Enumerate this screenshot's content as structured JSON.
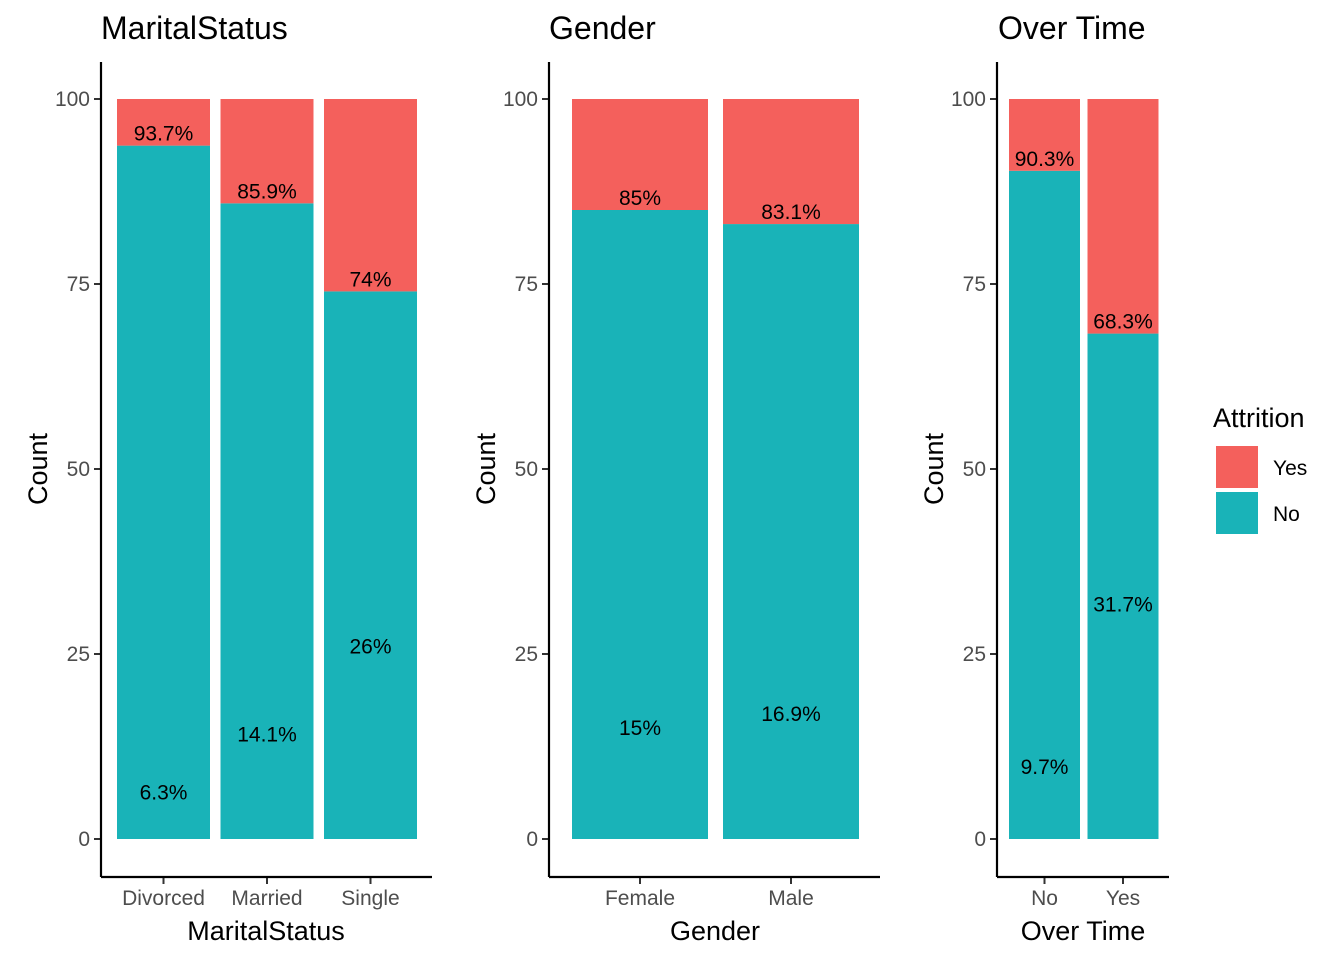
{
  "colors": {
    "yes": "#F8766D",
    "no": "#00BFC4",
    "yes_fill": "#F4605C",
    "no_fill": "#19B3B8"
  },
  "legend": {
    "title": "Attrition",
    "items": [
      {
        "label": "Yes",
        "key": "yes"
      },
      {
        "label": "No",
        "key": "no"
      }
    ]
  },
  "chart_data": [
    {
      "type": "bar",
      "stacked": true,
      "title": "MaritalStatus",
      "xlabel": "MaritalStatus",
      "ylabel": "Count",
      "ylim": [
        0,
        100
      ],
      "yticks": [
        "0",
        "25",
        "50",
        "75",
        "100"
      ],
      "categories": [
        "Divorced",
        "Married",
        "Single"
      ],
      "series": [
        {
          "name": "Yes",
          "values": [
            6.3,
            14.1,
            26
          ]
        },
        {
          "name": "No",
          "values": [
            93.7,
            85.9,
            74
          ]
        }
      ],
      "labels": {
        "no": [
          "93.7%",
          "85.9%",
          "74%"
        ],
        "yes": [
          "6.3%",
          "14.1%",
          "26%"
        ]
      }
    },
    {
      "type": "bar",
      "stacked": true,
      "title": "Gender",
      "xlabel": "Gender",
      "ylabel": "Count",
      "ylim": [
        0,
        100
      ],
      "yticks": [
        "0",
        "25",
        "50",
        "75",
        "100"
      ],
      "categories": [
        "Female",
        "Male"
      ],
      "series": [
        {
          "name": "Yes",
          "values": [
            15,
            16.9
          ]
        },
        {
          "name": "No",
          "values": [
            85,
            83.1
          ]
        }
      ],
      "labels": {
        "no": [
          "85%",
          "83.1%"
        ],
        "yes": [
          "15%",
          "16.9%"
        ]
      }
    },
    {
      "type": "bar",
      "stacked": true,
      "title": "Over Time",
      "xlabel": "Over Time",
      "ylabel": "Count",
      "ylim": [
        0,
        100
      ],
      "yticks": [
        "0",
        "25",
        "50",
        "75",
        "100"
      ],
      "categories": [
        "No",
        "Yes"
      ],
      "series": [
        {
          "name": "Yes",
          "values": [
            9.7,
            31.7
          ]
        },
        {
          "name": "No",
          "values": [
            90.3,
            68.3
          ]
        }
      ],
      "labels": {
        "no": [
          "90.3%",
          "68.3%"
        ],
        "yes": [
          "9.7%",
          "31.7%"
        ]
      }
    }
  ]
}
